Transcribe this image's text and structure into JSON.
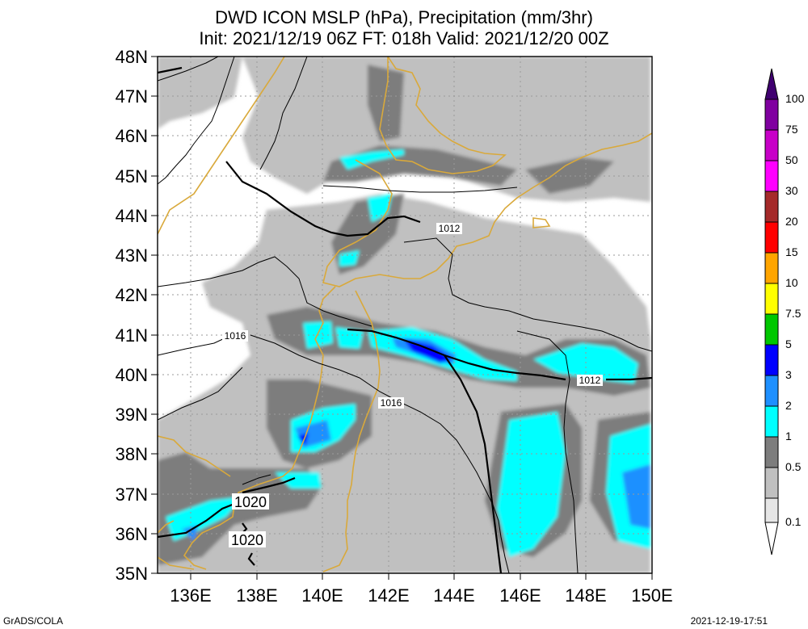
{
  "title": {
    "line1": "DWD ICON MSLP (hPa), Precipitation (mm/3hr)",
    "line2": "Init: 2021/12/19 06Z  FT: 018h  Valid: 2021/12/20 00Z"
  },
  "map": {
    "lon_range": [
      135,
      150
    ],
    "lat_range": [
      35,
      48
    ],
    "lat_ticks": [
      "48N",
      "47N",
      "46N",
      "45N",
      "44N",
      "43N",
      "42N",
      "41N",
      "40N",
      "39N",
      "38N",
      "37N",
      "36N",
      "35N"
    ],
    "lon_ticks": [
      "136E",
      "138E",
      "140E",
      "142E",
      "144E",
      "146E",
      "148E",
      "150E"
    ],
    "isobar_labels": [
      "1012",
      "1016",
      "1016",
      "1012",
      "1020",
      "1020"
    ],
    "colors": {
      "coast": "#d9a93b",
      "isobar": "#000000",
      "grid": "#9a9a9a"
    }
  },
  "legend": {
    "levels": [
      "0.1",
      "0.5",
      "1",
      "2",
      "3",
      "5",
      "7.5",
      "10",
      "15",
      "20",
      "30",
      "50",
      "75",
      "100"
    ],
    "colors": [
      "#ffffff",
      "#c0c0c0",
      "#7d7d7d",
      "#00ffff",
      "#1e90ff",
      "#0000ff",
      "#00c800",
      "#ffff00",
      "#ffa500",
      "#ff0000",
      "#a52a2a",
      "#ff00ff",
      "#c800c8",
      "#8000a0",
      "#400070"
    ]
  },
  "footer": {
    "left": "GrADS/COLA",
    "right": "2021-12-19-17:51"
  }
}
